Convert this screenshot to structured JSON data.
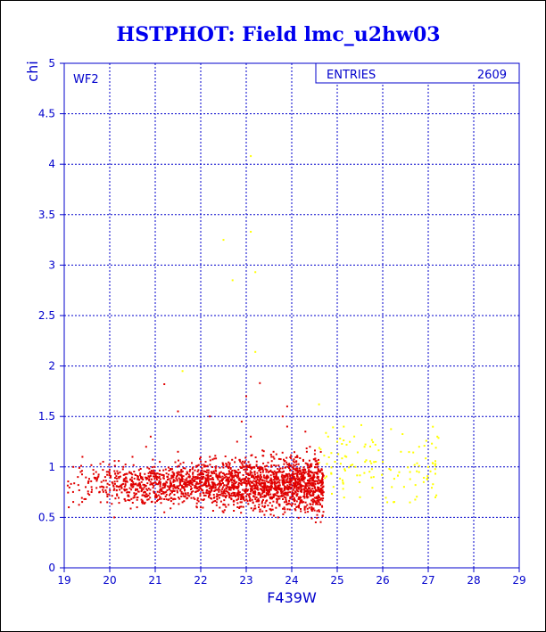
{
  "chart_data": {
    "type": "scatter",
    "title": "HSTPHOT: Field lmc_u2hw03",
    "xlabel": "F439W",
    "ylabel": "chi",
    "xlim": [
      19,
      29
    ],
    "ylim": [
      0,
      5
    ],
    "xticks": [
      "19",
      "20",
      "21",
      "22",
      "23",
      "24",
      "25",
      "26",
      "27",
      "28",
      "29"
    ],
    "yticks": [
      "0",
      "0.5",
      "1",
      "1.5",
      "2",
      "2.5",
      "3",
      "3.5",
      "4",
      "4.5",
      "5"
    ],
    "grid": true,
    "annotation": "WF2",
    "stats_label": "ENTRIES",
    "stats_value": "2609",
    "colors": {
      "axis": "#0000cc",
      "grid": "#0000cc",
      "bright": "#e00000",
      "faint": "#ffff00",
      "title": "#0000ee"
    },
    "series": [
      {
        "color": "#e00000",
        "points": [
          [
            19.1,
            0.6
          ],
          [
            19.2,
            1.0
          ],
          [
            19.3,
            0.9
          ],
          [
            19.4,
            1.1
          ],
          [
            19.6,
            0.8
          ],
          [
            19.7,
            0.95
          ],
          [
            19.8,
            0.65
          ],
          [
            19.9,
            0.9
          ],
          [
            20.1,
            0.5
          ],
          [
            20.2,
            0.9
          ],
          [
            20.3,
            1.0
          ],
          [
            20.4,
            0.75
          ],
          [
            20.5,
            1.1
          ],
          [
            20.6,
            0.6
          ],
          [
            20.7,
            0.85
          ],
          [
            20.8,
            1.2
          ],
          [
            20.9,
            0.95
          ],
          [
            21.0,
            0.7
          ],
          [
            21.1,
            1.05
          ],
          [
            21.2,
            0.55
          ],
          [
            21.3,
            0.8
          ],
          [
            21.4,
            0.9
          ],
          [
            21.5,
            1.15
          ],
          [
            21.6,
            0.65
          ],
          [
            21.7,
            0.95
          ],
          [
            21.8,
            0.75
          ],
          [
            21.9,
            1.0
          ],
          [
            22.0,
            0.6
          ],
          [
            22.1,
            0.85
          ],
          [
            22.2,
            1.1
          ],
          [
            22.3,
            0.7
          ],
          [
            22.4,
            0.9
          ],
          [
            22.5,
            0.55
          ],
          [
            22.6,
            1.0
          ],
          [
            22.7,
            0.8
          ],
          [
            22.8,
            1.25
          ],
          [
            22.9,
            0.65
          ],
          [
            23.0,
            0.9
          ],
          [
            23.1,
            1.3
          ],
          [
            23.2,
            0.75
          ],
          [
            23.3,
            1.0
          ],
          [
            23.4,
            0.6
          ],
          [
            23.5,
            0.85
          ],
          [
            23.6,
            1.15
          ],
          [
            23.7,
            0.5
          ],
          [
            23.8,
            0.95
          ],
          [
            23.9,
            1.4
          ],
          [
            24.0,
            0.7
          ],
          [
            24.1,
            1.05
          ],
          [
            24.2,
            0.8
          ],
          [
            24.3,
            0.55
          ],
          [
            24.4,
            1.2
          ],
          [
            24.5,
            0.9
          ],
          [
            24.6,
            0.65
          ],
          [
            24.7,
            0.75
          ],
          [
            21.2,
            1.82
          ],
          [
            21.5,
            1.55
          ],
          [
            22.2,
            1.5
          ],
          [
            23.0,
            1.7
          ],
          [
            23.3,
            1.83
          ],
          [
            23.9,
            1.6
          ],
          [
            23.8,
            1.5
          ],
          [
            22.9,
            1.45
          ],
          [
            24.3,
            1.35
          ],
          [
            20.9,
            1.3
          ]
        ]
      },
      {
        "color": "#ffff00",
        "points": [
          [
            23.1,
            4.08
          ],
          [
            22.5,
            3.25
          ],
          [
            23.1,
            3.33
          ],
          [
            22.7,
            2.85
          ],
          [
            23.2,
            2.93
          ],
          [
            23.2,
            2.14
          ],
          [
            21.6,
            1.95
          ],
          [
            24.6,
            1.62
          ],
          [
            24.8,
            1.3
          ],
          [
            25.0,
            1.25
          ],
          [
            25.2,
            1.1
          ],
          [
            25.4,
            1.0
          ],
          [
            25.6,
            1.2
          ],
          [
            25.8,
            0.9
          ],
          [
            26.0,
            1.05
          ],
          [
            26.2,
            0.8
          ],
          [
            26.4,
            1.15
          ],
          [
            26.6,
            0.95
          ],
          [
            26.8,
            1.2
          ],
          [
            27.0,
            1.0
          ],
          [
            27.2,
            1.3
          ],
          [
            25.5,
            0.7
          ],
          [
            26.1,
            0.65
          ],
          [
            26.9,
            0.85
          ]
        ]
      }
    ]
  }
}
